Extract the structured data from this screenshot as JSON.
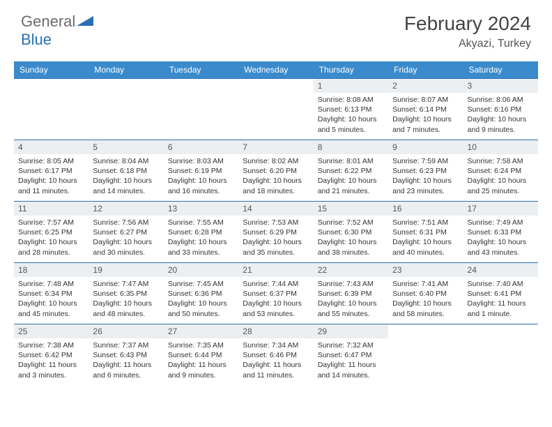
{
  "logo": {
    "part1": "General",
    "part2": "Blue"
  },
  "title": "February 2024",
  "subtitle": "Akyazi, Turkey",
  "colors": {
    "header_bg": "#3b8bcc",
    "border": "#2a6fb5",
    "daynum_bg": "#eceff1",
    "text": "#333333",
    "logo_gray": "#6b6b6b",
    "logo_blue": "#2a6fb5"
  },
  "dayNames": [
    "Sunday",
    "Monday",
    "Tuesday",
    "Wednesday",
    "Thursday",
    "Friday",
    "Saturday"
  ],
  "weeks": [
    [
      null,
      null,
      null,
      null,
      {
        "n": "1",
        "sr": "8:08 AM",
        "ss": "6:13 PM",
        "dl": "10 hours and 5 minutes."
      },
      {
        "n": "2",
        "sr": "8:07 AM",
        "ss": "6:14 PM",
        "dl": "10 hours and 7 minutes."
      },
      {
        "n": "3",
        "sr": "8:06 AM",
        "ss": "6:16 PM",
        "dl": "10 hours and 9 minutes."
      }
    ],
    [
      {
        "n": "4",
        "sr": "8:05 AM",
        "ss": "6:17 PM",
        "dl": "10 hours and 11 minutes."
      },
      {
        "n": "5",
        "sr": "8:04 AM",
        "ss": "6:18 PM",
        "dl": "10 hours and 14 minutes."
      },
      {
        "n": "6",
        "sr": "8:03 AM",
        "ss": "6:19 PM",
        "dl": "10 hours and 16 minutes."
      },
      {
        "n": "7",
        "sr": "8:02 AM",
        "ss": "6:20 PM",
        "dl": "10 hours and 18 minutes."
      },
      {
        "n": "8",
        "sr": "8:01 AM",
        "ss": "6:22 PM",
        "dl": "10 hours and 21 minutes."
      },
      {
        "n": "9",
        "sr": "7:59 AM",
        "ss": "6:23 PM",
        "dl": "10 hours and 23 minutes."
      },
      {
        "n": "10",
        "sr": "7:58 AM",
        "ss": "6:24 PM",
        "dl": "10 hours and 25 minutes."
      }
    ],
    [
      {
        "n": "11",
        "sr": "7:57 AM",
        "ss": "6:25 PM",
        "dl": "10 hours and 28 minutes."
      },
      {
        "n": "12",
        "sr": "7:56 AM",
        "ss": "6:27 PM",
        "dl": "10 hours and 30 minutes."
      },
      {
        "n": "13",
        "sr": "7:55 AM",
        "ss": "6:28 PM",
        "dl": "10 hours and 33 minutes."
      },
      {
        "n": "14",
        "sr": "7:53 AM",
        "ss": "6:29 PM",
        "dl": "10 hours and 35 minutes."
      },
      {
        "n": "15",
        "sr": "7:52 AM",
        "ss": "6:30 PM",
        "dl": "10 hours and 38 minutes."
      },
      {
        "n": "16",
        "sr": "7:51 AM",
        "ss": "6:31 PM",
        "dl": "10 hours and 40 minutes."
      },
      {
        "n": "17",
        "sr": "7:49 AM",
        "ss": "6:33 PM",
        "dl": "10 hours and 43 minutes."
      }
    ],
    [
      {
        "n": "18",
        "sr": "7:48 AM",
        "ss": "6:34 PM",
        "dl": "10 hours and 45 minutes."
      },
      {
        "n": "19",
        "sr": "7:47 AM",
        "ss": "6:35 PM",
        "dl": "10 hours and 48 minutes."
      },
      {
        "n": "20",
        "sr": "7:45 AM",
        "ss": "6:36 PM",
        "dl": "10 hours and 50 minutes."
      },
      {
        "n": "21",
        "sr": "7:44 AM",
        "ss": "6:37 PM",
        "dl": "10 hours and 53 minutes."
      },
      {
        "n": "22",
        "sr": "7:43 AM",
        "ss": "6:39 PM",
        "dl": "10 hours and 55 minutes."
      },
      {
        "n": "23",
        "sr": "7:41 AM",
        "ss": "6:40 PM",
        "dl": "10 hours and 58 minutes."
      },
      {
        "n": "24",
        "sr": "7:40 AM",
        "ss": "6:41 PM",
        "dl": "11 hours and 1 minute."
      }
    ],
    [
      {
        "n": "25",
        "sr": "7:38 AM",
        "ss": "6:42 PM",
        "dl": "11 hours and 3 minutes."
      },
      {
        "n": "26",
        "sr": "7:37 AM",
        "ss": "6:43 PM",
        "dl": "11 hours and 6 minutes."
      },
      {
        "n": "27",
        "sr": "7:35 AM",
        "ss": "6:44 PM",
        "dl": "11 hours and 9 minutes."
      },
      {
        "n": "28",
        "sr": "7:34 AM",
        "ss": "6:46 PM",
        "dl": "11 hours and 11 minutes."
      },
      {
        "n": "29",
        "sr": "7:32 AM",
        "ss": "6:47 PM",
        "dl": "11 hours and 14 minutes."
      },
      null,
      null
    ]
  ]
}
